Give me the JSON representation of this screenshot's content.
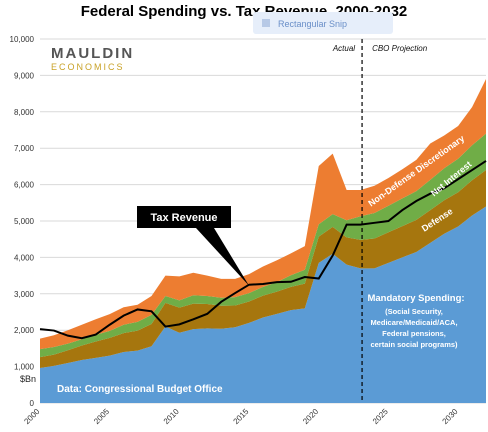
{
  "chart_data": {
    "type": "area",
    "title": "Federal Spending vs. Tax Revenue, 2000-2032",
    "ylabel": "$Bn",
    "ylim": [
      0,
      10000
    ],
    "y_ticks": [
      0,
      1000,
      2000,
      3000,
      4000,
      5000,
      6000,
      7000,
      8000,
      9000,
      10000
    ],
    "y_tick_labels": [
      "0",
      "1,000",
      "2,000",
      "3,000",
      "4,000",
      "5,000",
      "6,000",
      "7,000",
      "8,000",
      "9,000",
      "10,000"
    ],
    "xlim": [
      2000,
      2032
    ],
    "x_ticks": [
      2000,
      2005,
      2010,
      2015,
      2020,
      2025,
      2030
    ],
    "x_tick_labels": [
      "2000",
      "2005",
      "2010",
      "2015",
      "2020",
      "2025",
      "2030"
    ],
    "grid": true,
    "years": [
      2000,
      2001,
      2002,
      2003,
      2004,
      2005,
      2006,
      2007,
      2008,
      2009,
      2010,
      2011,
      2012,
      2013,
      2014,
      2015,
      2016,
      2017,
      2018,
      2019,
      2020,
      2021,
      2022,
      2023,
      2024,
      2025,
      2026,
      2027,
      2028,
      2029,
      2030,
      2031,
      2032
    ],
    "series": [
      {
        "name": "Mandatory Spending",
        "color": "#5b9bd5",
        "values": [
          960,
          1020,
          1100,
          1180,
          1240,
          1300,
          1400,
          1440,
          1560,
          2100,
          1930,
          2030,
          2050,
          2040,
          2080,
          2200,
          2350,
          2450,
          2550,
          2600,
          3850,
          4100,
          3800,
          3700,
          3700,
          3850,
          4000,
          4150,
          4400,
          4650,
          4850,
          5150,
          5400
        ]
      },
      {
        "name": "Defense",
        "color": "#a6760e",
        "values": [
          300,
          310,
          350,
          400,
          450,
          490,
          520,
          550,
          610,
          650,
          690,
          700,
          670,
          630,
          600,
          590,
          600,
          610,
          640,
          680,
          720,
          740,
          750,
          780,
          820,
          840,
          860,
          880,
          900,
          920,
          940,
          970,
          1000
        ]
      },
      {
        "name": "Net Interest",
        "color": "#70ad47",
        "values": [
          220,
          210,
          180,
          170,
          180,
          190,
          230,
          240,
          250,
          190,
          200,
          230,
          220,
          220,
          230,
          230,
          240,
          260,
          320,
          380,
          340,
          350,
          470,
          650,
          700,
          730,
          760,
          790,
          830,
          880,
          920,
          960,
          1000
        ]
      },
      {
        "name": "Non-Defense Discretionary",
        "color": "#ed7d31",
        "values": [
          290,
          320,
          370,
          400,
          430,
          460,
          480,
          470,
          520,
          560,
          660,
          620,
          560,
          520,
          500,
          520,
          560,
          600,
          600,
          650,
          1600,
          1660,
          830,
          720,
          750,
          760,
          800,
          860,
          1000,
          900,
          900,
          1050,
          1500
        ]
      }
    ],
    "line": {
      "name": "Tax Revenue",
      "color": "#000000",
      "values": [
        2030,
        1990,
        1850,
        1780,
        1880,
        2150,
        2400,
        2570,
        2520,
        2100,
        2160,
        2300,
        2450,
        2780,
        3020,
        3250,
        3270,
        3320,
        3330,
        3460,
        3420,
        4050,
        4900,
        4900,
        4950,
        5000,
        5300,
        5550,
        5750,
        5900,
        6150,
        6400,
        6650
      ]
    },
    "actual_projection_split": 2023,
    "annotations": {
      "actual": "Actual",
      "projection": "CBO Projection",
      "mandatory_heading": "Mandatory Spending:",
      "mandatory_detail": [
        "(Social Security,",
        "Medicare/Medicaid/ACA,",
        "Federal pensions,",
        "certain social programs)"
      ],
      "source": "Data: Congressional Budget Office",
      "callout": "Tax Revenue"
    }
  },
  "logo": {
    "line1": "MAULDIN",
    "line2": "ECONOMICS",
    "accent_color": "#c9a227"
  },
  "overlay": {
    "snip_label": "Rectangular Snip"
  }
}
